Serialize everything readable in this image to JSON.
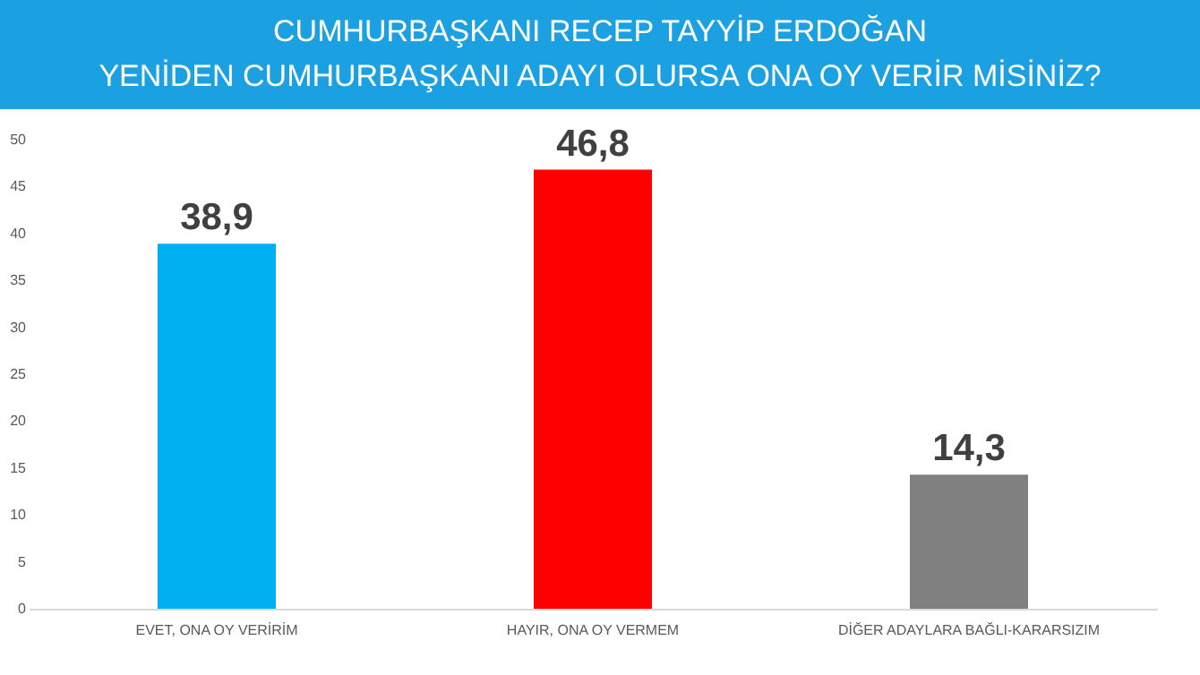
{
  "chart_data": {
    "type": "bar",
    "title": "CUMHURBAŞKANI RECEP TAYYİP ERDOĞAN\nYENİDEN CUMHURBAŞKANI ADAYI OLURSA ONA OY VERİR MİSİNİZ?",
    "categories": [
      "EVET, ONA OY VERİRİM",
      "HAYIR, ONA OY VERMEM",
      "DİĞER ADAYLARA BAĞLI-KARARSIZIM"
    ],
    "values": [
      38.9,
      46.8,
      14.3
    ],
    "colors": [
      "#00b0f0",
      "#ff0000",
      "#808080"
    ],
    "value_labels": [
      "38,9",
      "46,8",
      "14,3"
    ],
    "ylim": [
      0,
      50
    ],
    "yticks": [
      0,
      5,
      10,
      15,
      20,
      25,
      30,
      35,
      40,
      45,
      50
    ],
    "grid": false
  }
}
